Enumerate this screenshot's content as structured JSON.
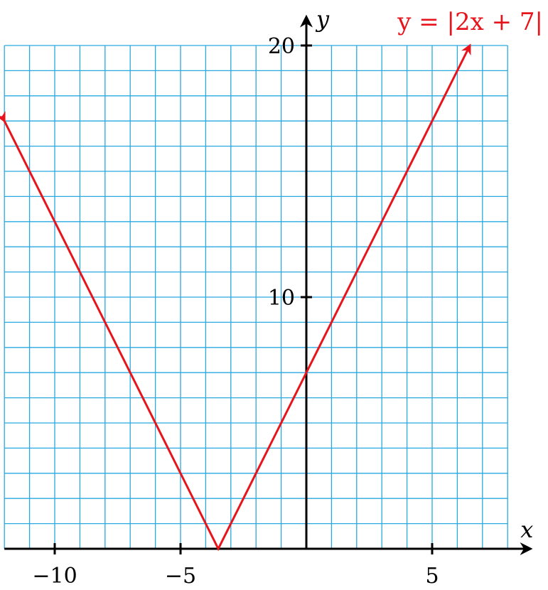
{
  "chart_data": {
    "type": "line",
    "title": "",
    "xlabel": "x",
    "ylabel": "y",
    "xlim": [
      -12,
      8
    ],
    "ylim": [
      0,
      20
    ],
    "grid": true,
    "grid_step_x": 1,
    "grid_step_y": 1,
    "x_ticks": [
      {
        "value": -10,
        "label": "−10"
      },
      {
        "value": -5,
        "label": "−5"
      },
      {
        "value": 5,
        "label": "5"
      }
    ],
    "y_ticks": [
      {
        "value": 10,
        "label": "10"
      },
      {
        "value": 20,
        "label": "20"
      }
    ],
    "series": [
      {
        "name": "y = |2x + 7|",
        "color": "#e8141c",
        "points": [
          [
            -12,
            17
          ],
          [
            -3.5,
            0
          ],
          [
            6.5,
            20
          ]
        ],
        "arrows_at_ends": true
      }
    ],
    "grid_color": "#29a9e0",
    "axis_color": "#000000"
  }
}
